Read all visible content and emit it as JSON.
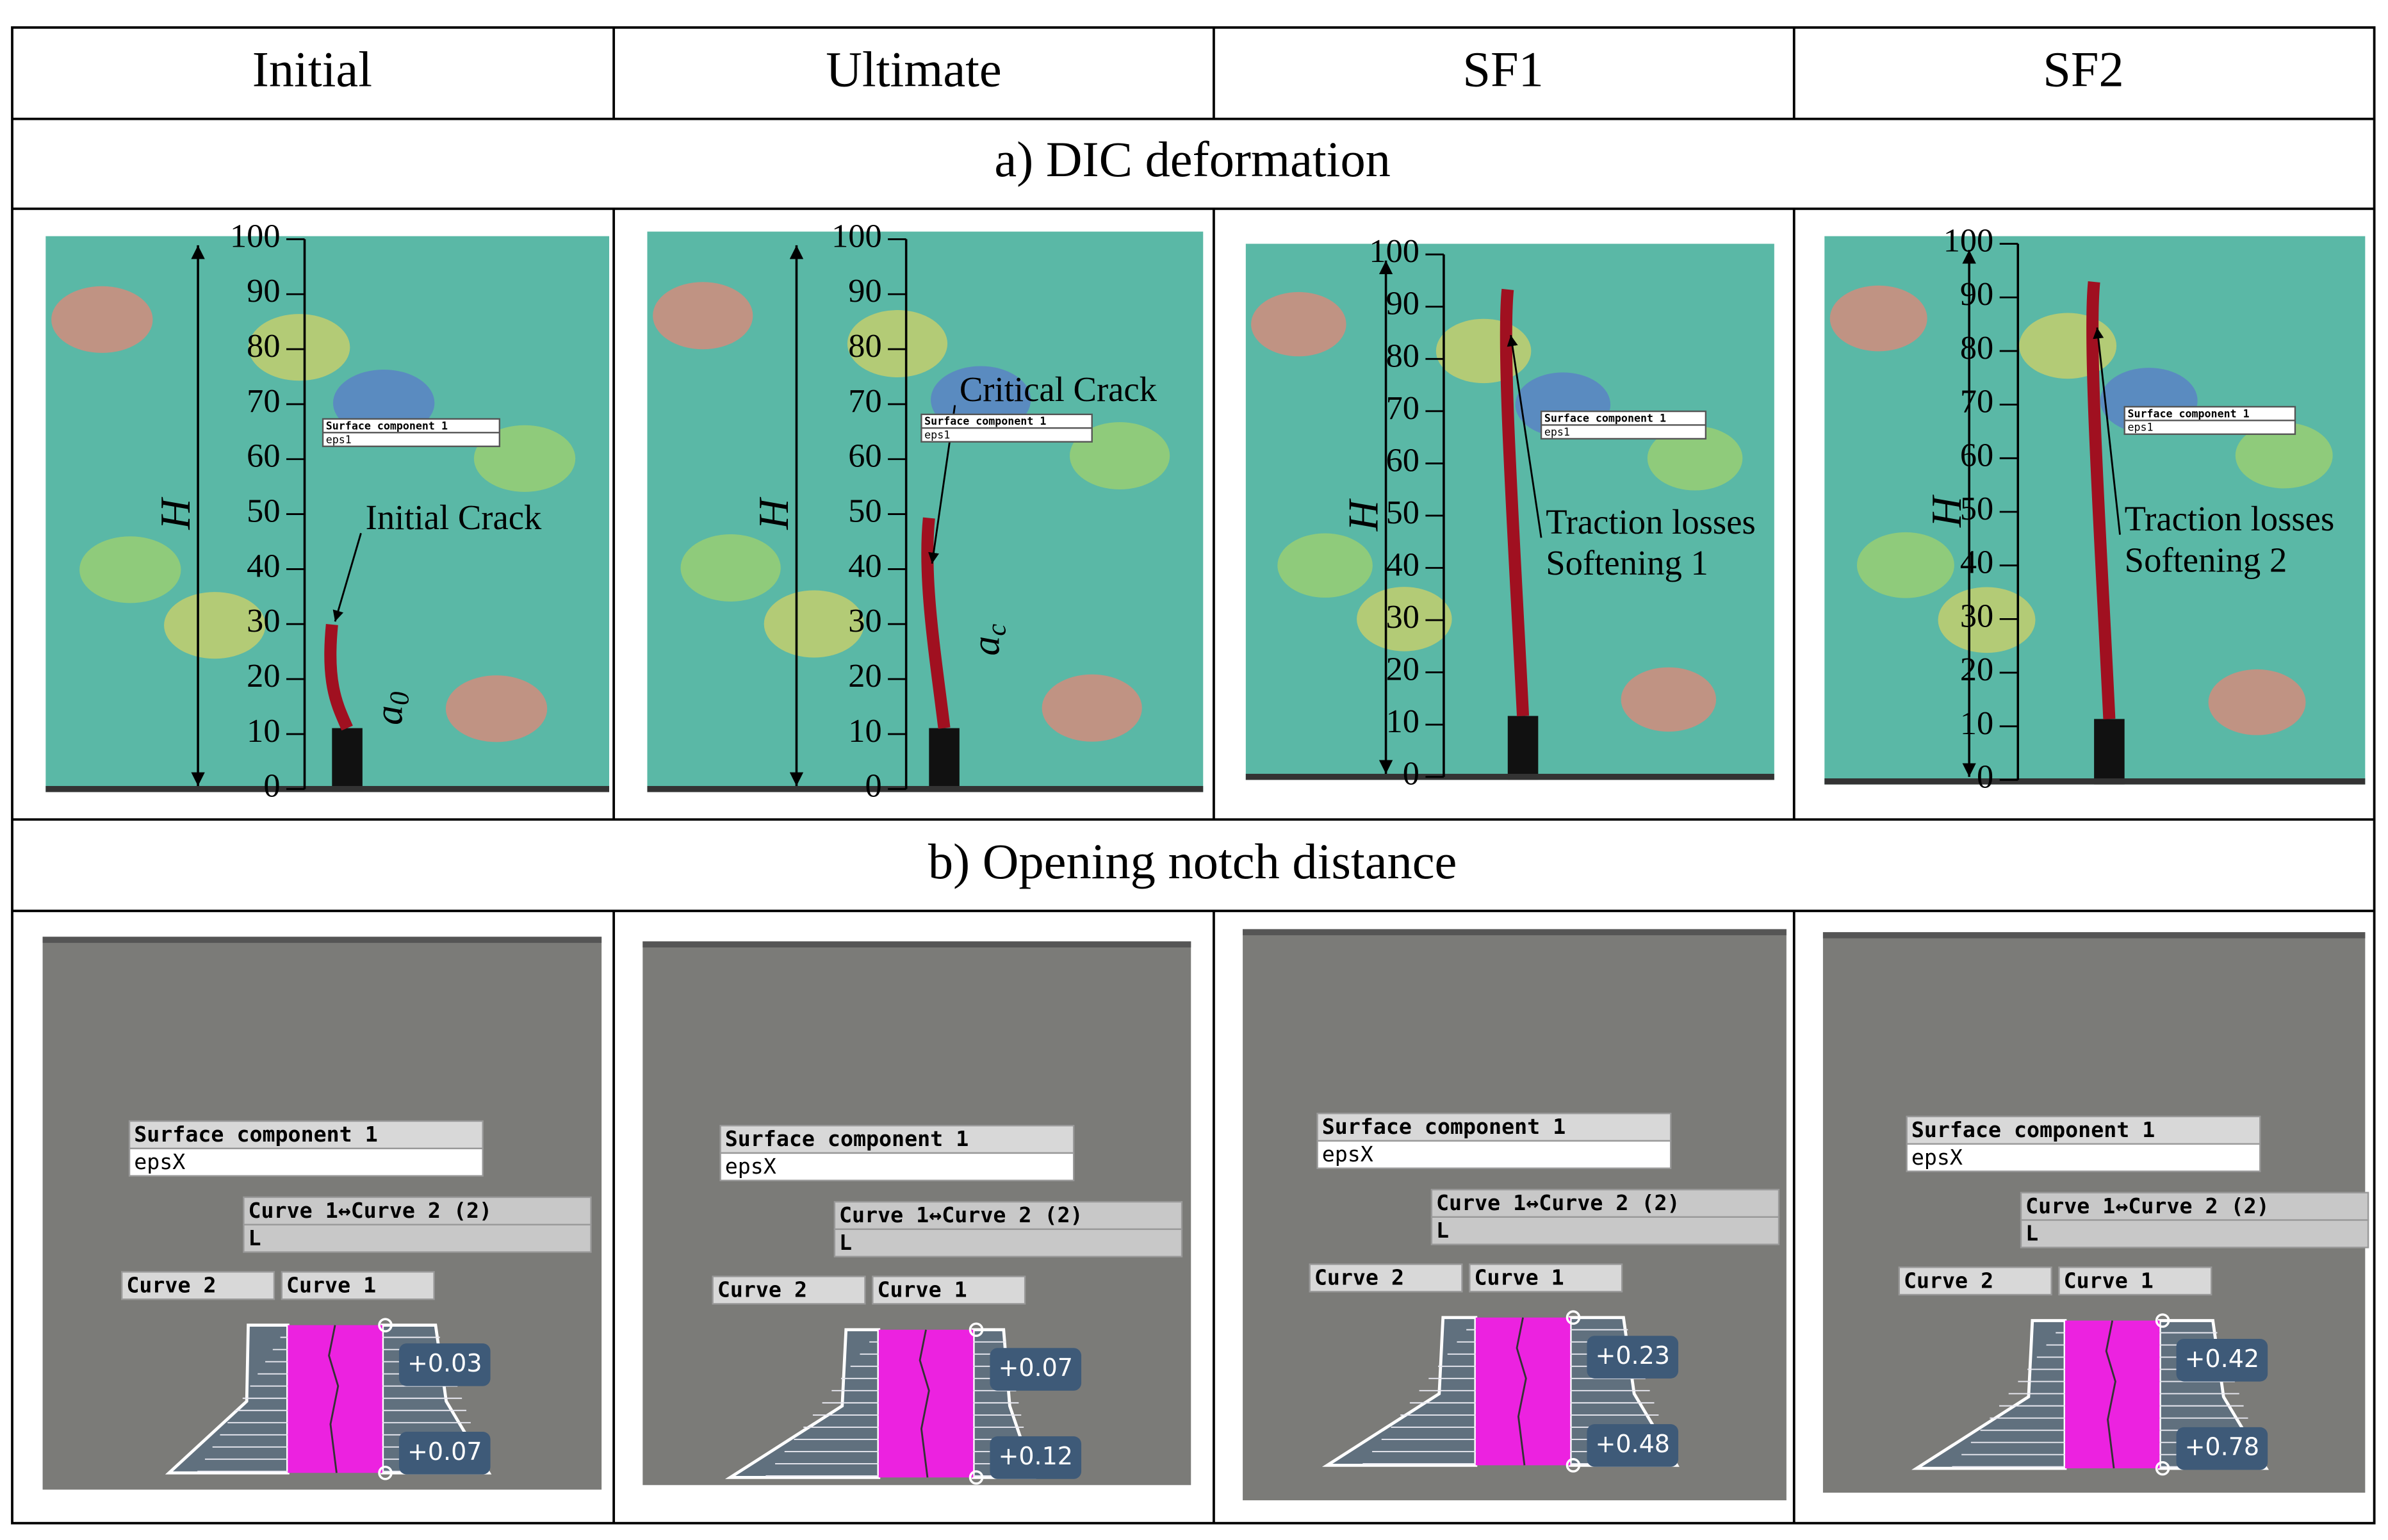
{
  "table": {
    "columns": [
      "Initial",
      "Ultimate",
      "SF1",
      "SF2"
    ],
    "sections": [
      "a) DIC deformation",
      "b) Opening notch distance"
    ]
  },
  "dic_scale_ticks": [
    "0",
    "10",
    "20",
    "30",
    "40",
    "50",
    "60",
    "70",
    "80",
    "90",
    "100"
  ],
  "dic_panels": [
    {
      "height_label": "H",
      "crack_label": "a",
      "crack_sub": "0",
      "annotations": [
        "Initial Crack"
      ],
      "legend_title": "Surface component 1",
      "legend_value": "eps1"
    },
    {
      "height_label": "H",
      "crack_label": "a",
      "crack_sub": "c",
      "annotations": [
        "Critical Crack"
      ],
      "legend_title": "Surface component 1",
      "legend_value": "eps1"
    },
    {
      "height_label": "H",
      "annotations": [
        "Traction losses",
        "Softening 1"
      ],
      "legend_title": "Surface component 1",
      "legend_value": "eps1"
    },
    {
      "height_label": "H",
      "annotations": [
        "Traction losses",
        "Softening 2"
      ],
      "legend_title": "Surface component 1",
      "legend_value": "eps1"
    }
  ],
  "notch_panels": [
    {
      "legend_title": "Surface component 1",
      "legend_value": "epsX",
      "curve_pair": "Curve 1↔Curve 2 (2)",
      "curve_pair_value": "L",
      "left_curve": "Curve 2",
      "right_curve": "Curve 1",
      "openings": [
        "+0.03",
        "+0.07"
      ]
    },
    {
      "legend_title": "Surface component 1",
      "legend_value": "epsX",
      "curve_pair": "Curve 1↔Curve 2 (2)",
      "curve_pair_value": "L",
      "left_curve": "Curve 2",
      "right_curve": "Curve 1",
      "openings": [
        "+0.07",
        "+0.12"
      ]
    },
    {
      "legend_title": "Surface component 1",
      "legend_value": "epsX",
      "curve_pair": "Curve 1↔Curve 2 (2)",
      "curve_pair_value": "L",
      "left_curve": "Curve 2",
      "right_curve": "Curve 1",
      "openings": [
        "+0.23",
        "+0.48"
      ]
    },
    {
      "legend_title": "Surface component 1",
      "legend_value": "epsX",
      "curve_pair": "Curve 1↔Curve 2 (2)",
      "curve_pair_value": "L",
      "left_curve": "Curve 2",
      "right_curve": "Curve 1",
      "openings": [
        "+0.42",
        "+0.78"
      ]
    }
  ]
}
